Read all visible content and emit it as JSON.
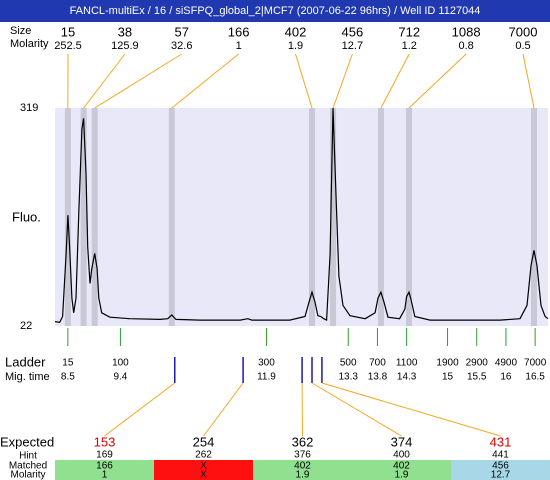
{
  "title": "FANCL-multiEx / 16 / siSFPQ_global_2|MCF7 (2007-06-22 96hrs) / Well ID 1127044",
  "peaks": {
    "size_label": "Size",
    "molarity_label": "Molarity",
    "sizes": [
      15,
      38,
      57,
      166,
      402,
      456,
      712,
      1088,
      7000
    ],
    "molarity": [
      252.5,
      125.9,
      32.6,
      1,
      1.9,
      12.7,
      1.2,
      0.8,
      0.5
    ],
    "x": [
      8.5,
      8.77,
      8.96,
      10.28,
      12.68,
      13.04,
      13.86,
      14.34,
      16.48
    ],
    "line_color": "#f5a623",
    "band_color": "#c8c8d6"
  },
  "chart_data": {
    "type": "line",
    "ylabel": "Fluo.",
    "xlim": [
      8.28,
      16.72
    ],
    "ylim": [
      22,
      319
    ],
    "yticks": [
      22,
      319
    ],
    "x": [
      8.28,
      8.36,
      8.41,
      8.47,
      8.5,
      8.53,
      8.57,
      8.6,
      8.64,
      8.69,
      8.74,
      8.77,
      8.81,
      8.84,
      8.88,
      8.91,
      8.96,
      9.0,
      9.03,
      9.08,
      9.22,
      9.56,
      10.08,
      10.21,
      10.28,
      10.35,
      10.76,
      11.45,
      11.58,
      11.65,
      12.3,
      12.56,
      12.63,
      12.68,
      12.73,
      12.78,
      12.83,
      12.88,
      12.93,
      12.99,
      13.04,
      13.09,
      13.14,
      13.21,
      13.33,
      13.59,
      13.76,
      13.81,
      13.86,
      13.91,
      13.98,
      14.18,
      14.27,
      14.3,
      14.34,
      14.37,
      14.44,
      14.7,
      15.9,
      16.24,
      16.36,
      16.43,
      16.48,
      16.53,
      16.6,
      16.67,
      16.72
    ],
    "series": [
      {
        "color": "#000000",
        "values": [
          28,
          27,
          35,
          120,
          173,
          130,
          60,
          40,
          60,
          180,
          290,
          305,
          230,
          130,
          80,
          100,
          121,
          100,
          60,
          40,
          34,
          32,
          31,
          32,
          37,
          31,
          30,
          30,
          32,
          30,
          30,
          35,
          55,
          68,
          55,
          36,
          35,
          32,
          30,
          120,
          319,
          200,
          90,
          50,
          36,
          32,
          40,
          60,
          68,
          55,
          34,
          32,
          45,
          62,
          68,
          60,
          35,
          30,
          30,
          32,
          50,
          105,
          125,
          105,
          50,
          35,
          32
        ]
      }
    ],
    "background": "#e8e8f8"
  },
  "ladder": {
    "label": "Ladder",
    "time_label": "Mig. time",
    "sizes": [
      15,
      100,
      300,
      500,
      700,
      1100,
      1900,
      2900,
      4900,
      7000
    ],
    "times": [
      8.5,
      9.4,
      11.9,
      13.3,
      13.8,
      14.3,
      15,
      15.5,
      16,
      16.5
    ],
    "color": "#2e9e2e"
  },
  "expected": {
    "label": "Expected",
    "values": [
      153,
      254,
      362,
      374,
      431
    ],
    "colors": [
      "#e00000",
      "#000000",
      "#000000",
      "#000000",
      "#e00000"
    ],
    "x": [
      10.33,
      11.5,
      12.51,
      12.68,
      12.85
    ],
    "marker_color": "#1a1ab0",
    "hint_label": "Hint",
    "hints": [
      169,
      262,
      376,
      400,
      441
    ],
    "matched_label": "Matched",
    "matched": [
      166,
      "X",
      402,
      402,
      456
    ],
    "molarity_label": "Molarity",
    "molarity": [
      1,
      "X",
      1.9,
      1.9,
      12.7
    ],
    "cell_colors": [
      "#90e090",
      "#ff1010",
      "#90e090",
      "#90e090",
      "#a8d8e8"
    ]
  }
}
